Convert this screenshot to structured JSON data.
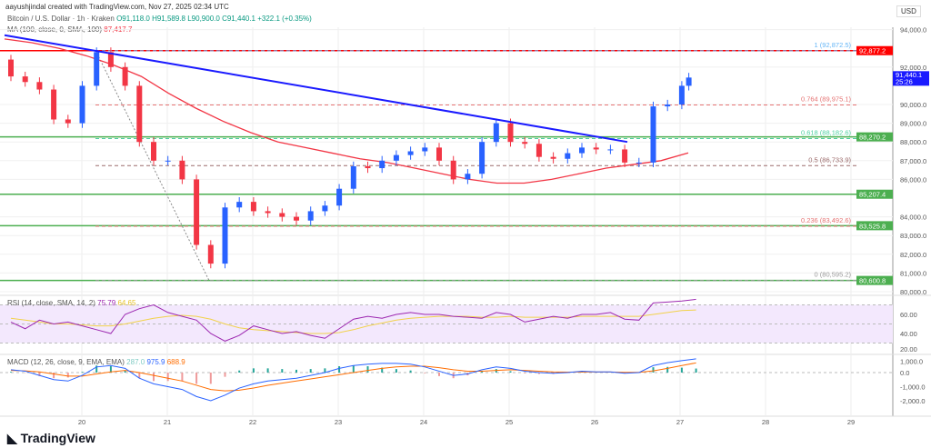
{
  "header": {
    "credit": "aayushjindal created with TradingView.com, Nov 27, 2025 02:34 UTC",
    "symbol": "Bitcoin / U.S. Dollar · 1h · Kraken",
    "open": "O91,118.0",
    "high": "H91,589.8",
    "low": "L90,900.0",
    "close": "C91,440.1",
    "change": "+322.1 (+0.35%)",
    "ma_label": "MA (100, close, 0, SMA, 100)",
    "ma_value": "87,417.7"
  },
  "currency": "USD",
  "logo": "TradingView",
  "rsi": {
    "label": "RSI (14, close, SMA, 14, 2)",
    "value": "75.79",
    "sma": "64.65"
  },
  "macd": {
    "label": "MACD (12, 26, close, 9, EMA, EMA)",
    "hist": "287.0",
    "macd": "975.9",
    "signal": "688.9"
  },
  "colors": {
    "up": "#2962ff",
    "down": "#f23645",
    "ma": "#f23645",
    "trend": "#1a1aff",
    "support": "#4caf50",
    "resistance": "#ff0000"
  },
  "chart_data": {
    "type": "candlestick",
    "ylim": [
      79500,
      94300
    ],
    "price_ticks": [
      "94,000.0",
      "92,000.0",
      "90,000.0",
      "89,000.0",
      "88,000.0",
      "87,000.0",
      "86,000.0",
      "84,000.0",
      "83,000.0",
      "82,000.0",
      "81,000.0",
      "80,000.0"
    ],
    "x_ticks": [
      "20",
      "21",
      "22",
      "23",
      "24",
      "25",
      "26",
      "27",
      "28",
      "29"
    ],
    "start": "2025-11-19 04:00",
    "interval_hours": 4,
    "closes": [
      91500,
      91200,
      90800,
      89200,
      89000,
      91000,
      92800,
      92000,
      91000,
      88000,
      87000,
      87000,
      86000,
      82500,
      81500,
      84500,
      84800,
      84300,
      84200,
      84000,
      83800,
      84300,
      84600,
      85500,
      86700,
      86600,
      87000,
      87300,
      87500,
      87700,
      87000,
      86000,
      86300,
      88000,
      89000,
      88000,
      87900,
      87200,
      87100,
      87400,
      87700,
      87600,
      87600,
      86900,
      86900,
      89900,
      90000,
      91000,
      91440.1
    ],
    "ma100": [
      93500,
      93300,
      93000,
      92600,
      92100,
      91500,
      90600,
      89800,
      89100,
      88500,
      88000,
      87700,
      87400,
      87100,
      86900,
      86600,
      86300,
      86000,
      85800,
      85800,
      86000,
      86300,
      86600,
      86800,
      87000,
      87417.7
    ],
    "trendline": [
      93700,
      88000
    ],
    "levels": [
      {
        "label": "92,877.2",
        "value": 92877.2,
        "color": "#ff0000"
      },
      {
        "label": "88,270.2",
        "value": 88270.2,
        "color": "#4caf50"
      },
      {
        "label": "85,207.4",
        "value": 85207.4,
        "color": "#4caf50"
      },
      {
        "label": "83,525.8",
        "value": 83525.8,
        "color": "#4caf50"
      },
      {
        "label": "80,600.8",
        "value": 80600.8,
        "color": "#4caf50"
      }
    ],
    "last_price": {
      "label": "91,440.1",
      "countdown": "25:26",
      "value": 91440.1
    },
    "fib": [
      {
        "label": "1 (92,872.5)",
        "value": 92872.5,
        "color": "#64b5f6"
      },
      {
        "label": "0.764 (89,975.1)",
        "value": 89975.1,
        "color": "#e57373"
      },
      {
        "label": "0.618 (88,182.6)",
        "value": 88182.6,
        "color": "#4dd0a0"
      },
      {
        "label": "0.5 (86,733.9)",
        "value": 86733.9,
        "color": "#9c6b6b"
      },
      {
        "label": "0.236 (83,492.6)",
        "value": 83492.6,
        "color": "#e57373"
      },
      {
        "label": "0 (80,595.2)",
        "value": 80595.2,
        "color": "#999999"
      }
    ],
    "rsi_ticks": [
      "60.00",
      "40.00",
      "20.00"
    ],
    "rsi": [
      52,
      45,
      54,
      50,
      52,
      48,
      44,
      40,
      60,
      66,
      70,
      62,
      58,
      54,
      40,
      32,
      38,
      48,
      44,
      40,
      42,
      38,
      35,
      45,
      55,
      58,
      56,
      60,
      62,
      60,
      60,
      58,
      57,
      56,
      62,
      60,
      52,
      55,
      58,
      56,
      60,
      60,
      62,
      55,
      54,
      72,
      73,
      74,
      75.79
    ],
    "rsi_sma": [
      56,
      54,
      52,
      50,
      50,
      49,
      48,
      48,
      50,
      53,
      56,
      58,
      59,
      58,
      55,
      50,
      46,
      44,
      43,
      42,
      41,
      40,
      40,
      41,
      44,
      48,
      51,
      54,
      56,
      57,
      58,
      58,
      58,
      57,
      57,
      58,
      57,
      57,
      57,
      57,
      58,
      58,
      58,
      58,
      58,
      60,
      62,
      64,
      64.65
    ],
    "macd_ticks": [
      "1,000.0",
      "0.0",
      "-1,000.0",
      "-2,000.0"
    ],
    "macd": [
      200,
      100,
      -200,
      -500,
      -600,
      -200,
      400,
      500,
      300,
      -400,
      -800,
      -1000,
      -1200,
      -1700,
      -2000,
      -1600,
      -1100,
      -800,
      -600,
      -500,
      -400,
      -200,
      0,
      300,
      500,
      600,
      650,
      650,
      600,
      400,
      100,
      -200,
      -100,
      200,
      400,
      300,
      100,
      0,
      -50,
      0,
      100,
      50,
      50,
      -50,
      0,
      500,
      700,
      850,
      975.9
    ],
    "signal": [
      150,
      120,
      50,
      -100,
      -250,
      -250,
      -100,
      50,
      150,
      0,
      -200,
      -400,
      -600,
      -900,
      -1200,
      -1300,
      -1250,
      -1100,
      -900,
      -750,
      -600,
      -450,
      -300,
      -150,
      0,
      150,
      300,
      400,
      450,
      450,
      350,
      200,
      100,
      100,
      150,
      200,
      150,
      100,
      50,
      30,
      40,
      40,
      40,
      20,
      20,
      120,
      300,
      500,
      688.9
    ]
  }
}
